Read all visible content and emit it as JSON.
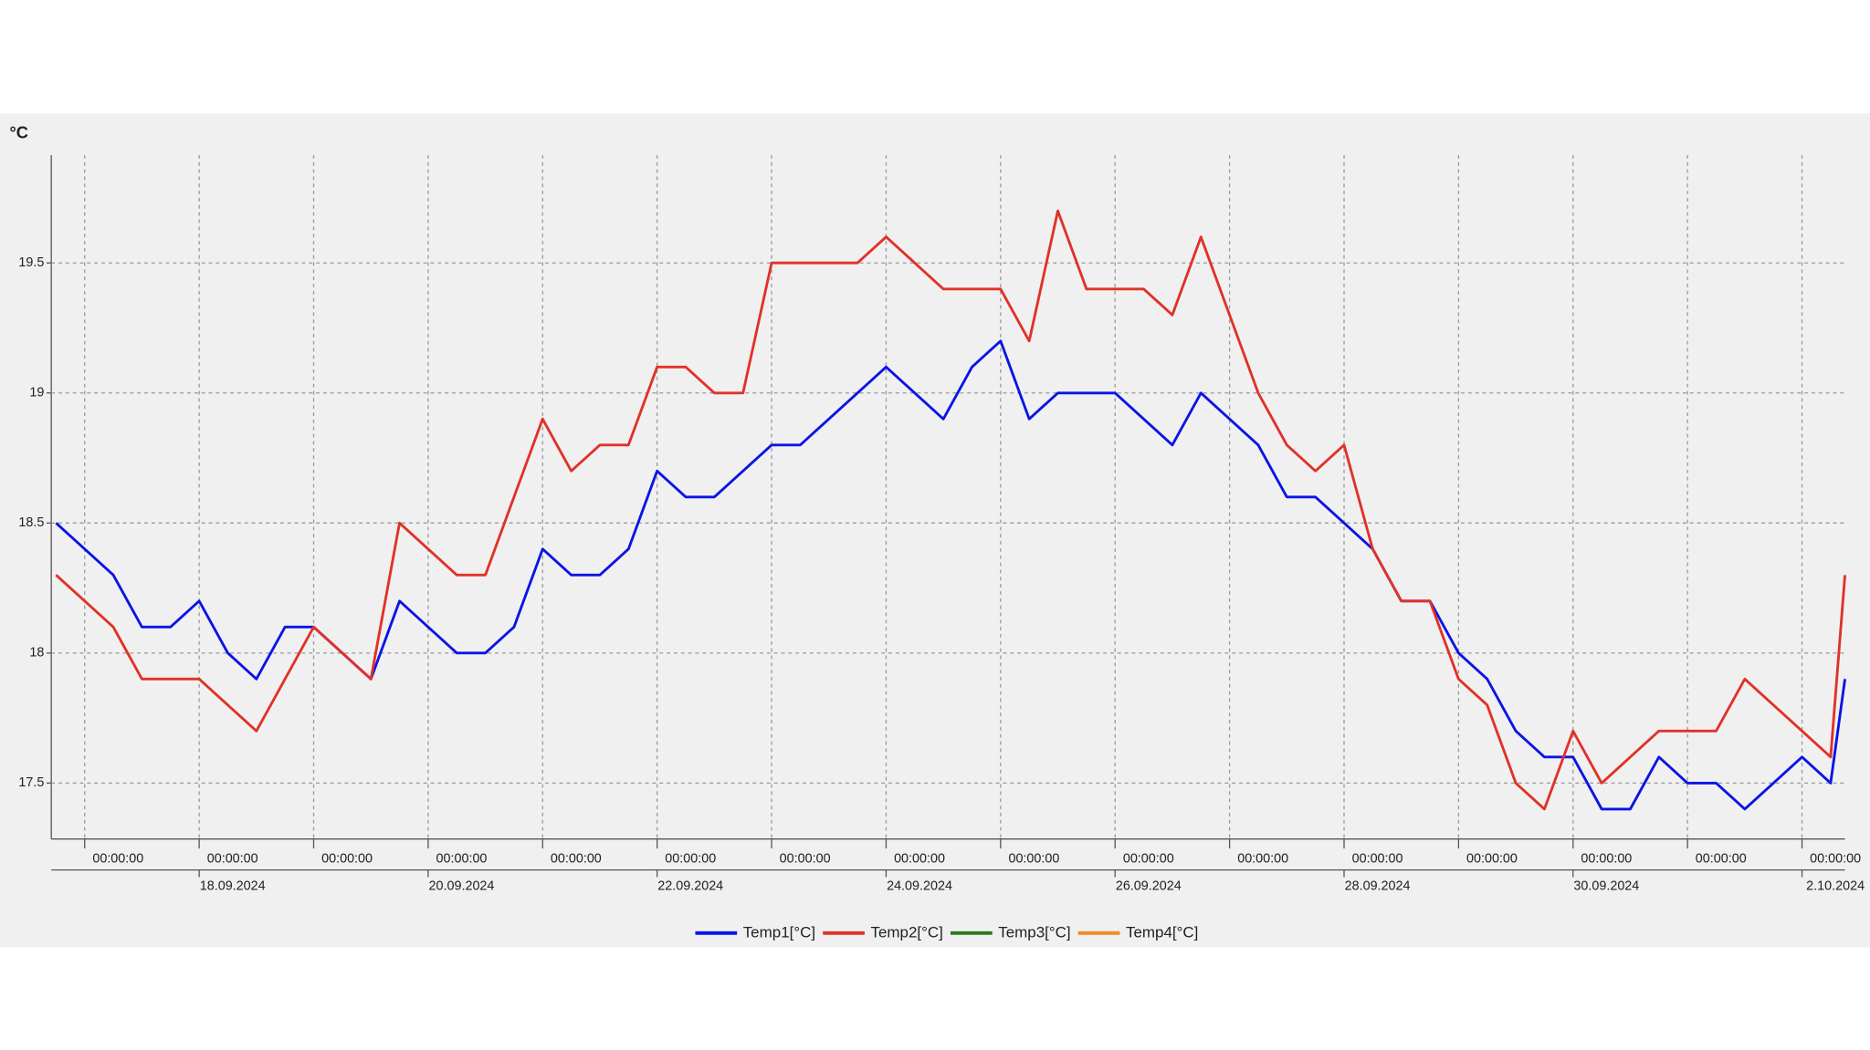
{
  "chart_data": {
    "type": "line",
    "ylabel": "°C",
    "x": [
      "16.09.2024 18:00:00",
      "17.09.2024 00:00:00",
      "17.09.2024 06:00:00",
      "17.09.2024 12:00:00",
      "17.09.2024 18:00:00",
      "18.09.2024 00:00:00",
      "18.09.2024 06:00:00",
      "18.09.2024 12:00:00",
      "18.09.2024 18:00:00",
      "19.09.2024 00:00:00",
      "19.09.2024 06:00:00",
      "19.09.2024 12:00:00",
      "19.09.2024 18:00:00",
      "20.09.2024 00:00:00",
      "20.09.2024 06:00:00",
      "20.09.2024 12:00:00",
      "20.09.2024 18:00:00",
      "21.09.2024 00:00:00",
      "21.09.2024 06:00:00",
      "21.09.2024 12:00:00",
      "21.09.2024 18:00:00",
      "22.09.2024 00:00:00",
      "22.09.2024 06:00:00",
      "22.09.2024 12:00:00",
      "22.09.2024 18:00:00",
      "23.09.2024 00:00:00",
      "23.09.2024 06:00:00",
      "23.09.2024 12:00:00",
      "23.09.2024 18:00:00",
      "24.09.2024 00:00:00",
      "24.09.2024 06:00:00",
      "24.09.2024 12:00:00",
      "24.09.2024 18:00:00",
      "25.09.2024 00:00:00",
      "25.09.2024 06:00:00",
      "25.09.2024 12:00:00",
      "25.09.2024 18:00:00",
      "26.09.2024 00:00:00",
      "26.09.2024 06:00:00",
      "26.09.2024 12:00:00",
      "26.09.2024 18:00:00",
      "27.09.2024 00:00:00",
      "27.09.2024 06:00:00",
      "27.09.2024 12:00:00",
      "27.09.2024 18:00:00",
      "28.09.2024 00:00:00",
      "28.09.2024 06:00:00",
      "28.09.2024 12:00:00",
      "28.09.2024 18:00:00",
      "29.09.2024 00:00:00",
      "29.09.2024 06:00:00",
      "29.09.2024 12:00:00",
      "29.09.2024 18:00:00",
      "30.09.2024 00:00:00",
      "30.09.2024 06:00:00",
      "30.09.2024 12:00:00",
      "30.09.2024 18:00:00",
      "01.10.2024 00:00:00",
      "01.10.2024 06:00:00",
      "01.10.2024 12:00:00",
      "01.10.2024 18:00:00",
      "02.10.2024 00:00:00",
      "02.10.2024 06:00:00",
      "02.10.2024 09:00:00"
    ],
    "series": [
      {
        "name": "Temp1[°C]",
        "color": "#0a14e6",
        "values": [
          18.5,
          18.4,
          18.3,
          18.1,
          18.1,
          18.2,
          18.0,
          17.9,
          18.1,
          18.1,
          18.0,
          17.9,
          18.2,
          18.1,
          18.0,
          18.0,
          18.1,
          18.4,
          18.3,
          18.3,
          18.4,
          18.7,
          18.6,
          18.6,
          18.7,
          18.8,
          18.8,
          18.9,
          19.0,
          19.1,
          19.0,
          18.9,
          19.1,
          19.2,
          18.9,
          19.0,
          19.0,
          19.0,
          18.9,
          18.8,
          19.0,
          18.9,
          18.8,
          18.6,
          18.6,
          18.5,
          18.4,
          18.2,
          18.2,
          18.0,
          17.9,
          17.7,
          17.6,
          17.6,
          17.4,
          17.4,
          17.6,
          17.5,
          17.5,
          17.4,
          17.5,
          17.6,
          17.5,
          17.9
        ]
      },
      {
        "name": "Temp2[°C]",
        "color": "#e03228",
        "values": [
          18.3,
          18.2,
          18.1,
          17.9,
          17.9,
          17.9,
          17.8,
          17.7,
          17.9,
          18.1,
          18.0,
          17.9,
          18.5,
          18.4,
          18.3,
          18.3,
          18.6,
          18.9,
          18.7,
          18.8,
          18.8,
          19.1,
          19.1,
          19.0,
          19.0,
          19.5,
          19.5,
          19.5,
          19.5,
          19.6,
          19.5,
          19.4,
          19.4,
          19.4,
          19.2,
          19.7,
          19.4,
          19.4,
          19.4,
          19.3,
          19.6,
          19.3,
          19.0,
          18.8,
          18.7,
          18.8,
          18.4,
          18.2,
          18.2,
          17.9,
          17.8,
          17.5,
          17.4,
          17.7,
          17.5,
          17.6,
          17.7,
          17.7,
          17.7,
          17.9,
          17.8,
          17.7,
          17.6,
          18.3
        ]
      },
      {
        "name": "Temp3[°C]",
        "color": "#2a7a1c",
        "values": [
          null,
          null,
          null,
          null,
          null,
          null,
          null,
          null,
          null,
          null,
          null,
          null,
          null,
          null,
          null,
          null,
          null,
          null,
          null,
          null,
          null,
          null,
          null,
          null,
          null,
          null,
          null,
          null,
          null,
          null,
          null,
          null,
          null,
          null,
          null,
          null,
          null,
          null,
          null,
          null,
          null,
          null,
          null,
          null,
          null,
          null,
          null,
          null,
          null,
          null,
          null,
          null,
          null,
          null,
          null,
          null,
          null,
          null,
          null,
          null,
          null,
          null,
          null,
          null
        ]
      },
      {
        "name": "Temp4[°C]",
        "color": "#f08c28",
        "values": [
          null,
          null,
          null,
          null,
          null,
          null,
          null,
          null,
          null,
          null,
          null,
          null,
          null,
          null,
          null,
          null,
          null,
          null,
          null,
          null,
          null,
          null,
          null,
          null,
          null,
          null,
          null,
          null,
          null,
          null,
          null,
          null,
          null,
          null,
          null,
          null,
          null,
          null,
          null,
          null,
          null,
          null,
          null,
          null,
          null,
          null,
          null,
          null,
          null,
          null,
          null,
          null,
          null,
          null,
          null,
          null,
          null,
          null,
          null,
          null,
          null,
          null,
          null,
          null
        ]
      }
    ],
    "xlim": [
      "16.09.2024 17:00:00",
      "02.10.2024 09:00:00"
    ],
    "xticks": [
      {
        "value": "17.09.2024 00:00:00",
        "label": "00:00:00"
      },
      {
        "value": "18.09.2024 00:00:00",
        "label": "00:00:00"
      },
      {
        "value": "19.09.2024 00:00:00",
        "label": "00:00:00"
      },
      {
        "value": "20.09.2024 00:00:00",
        "label": "00:00:00"
      },
      {
        "value": "21.09.2024 00:00:00",
        "label": "00:00:00"
      },
      {
        "value": "22.09.2024 00:00:00",
        "label": "00:00:00"
      },
      {
        "value": "23.09.2024 00:00:00",
        "label": "00:00:00"
      },
      {
        "value": "24.09.2024 00:00:00",
        "label": "00:00:00"
      },
      {
        "value": "25.09.2024 00:00:00",
        "label": "00:00:00"
      },
      {
        "value": "26.09.2024 00:00:00",
        "label": "00:00:00"
      },
      {
        "value": "27.09.2024 00:00:00",
        "label": "00:00:00"
      },
      {
        "value": "28.09.2024 00:00:00",
        "label": "00:00:00"
      },
      {
        "value": "29.09.2024 00:00:00",
        "label": "00:00:00"
      },
      {
        "value": "30.09.2024 00:00:00",
        "label": "00:00:00"
      },
      {
        "value": "01.10.2024 00:00:00",
        "label": "00:00:00"
      },
      {
        "value": "02.10.2024 00:00:00",
        "label": "00:00:00"
      }
    ],
    "xticks2": [
      {
        "value": "18.09.2024 00:00:00",
        "label": "18.09.2024"
      },
      {
        "value": "20.09.2024 00:00:00",
        "label": "20.09.2024"
      },
      {
        "value": "22.09.2024 00:00:00",
        "label": "22.09.2024"
      },
      {
        "value": "24.09.2024 00:00:00",
        "label": "24.09.2024"
      },
      {
        "value": "26.09.2024 00:00:00",
        "label": "26.09.2024"
      },
      {
        "value": "28.09.2024 00:00:00",
        "label": "28.09.2024"
      },
      {
        "value": "30.09.2024 00:00:00",
        "label": "30.09.2024"
      },
      {
        "value": "02.10.2024 00:00:00",
        "label": "2.10.2024"
      }
    ],
    "ylim": [
      17.285,
      19.915
    ],
    "yticks": [
      17.5,
      18,
      18.5,
      19,
      19.5
    ],
    "grid": true,
    "legend": "bottom"
  }
}
